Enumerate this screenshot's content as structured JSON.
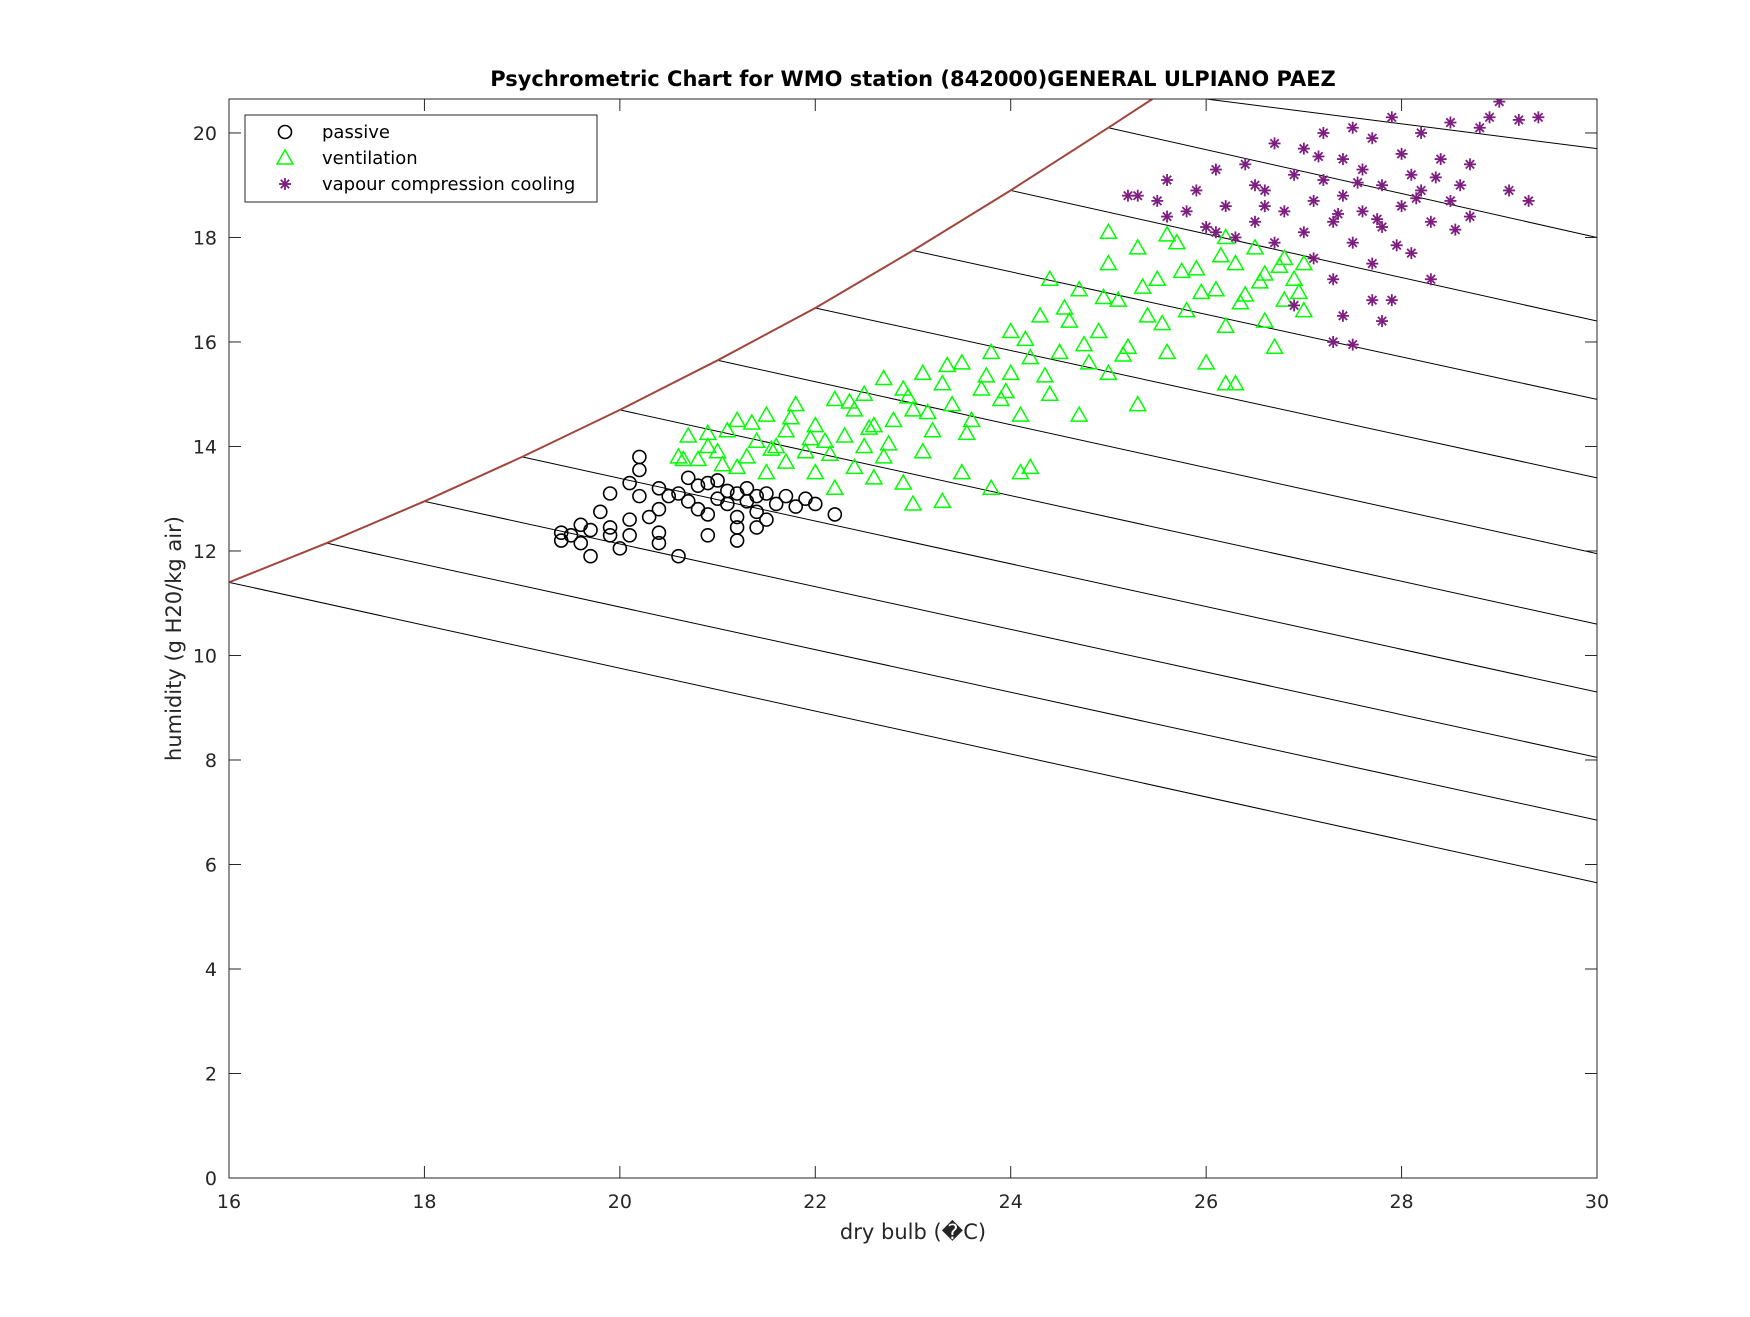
{
  "chart_data": {
    "type": "scatter",
    "title": "Psychrometric Chart for WMO station (842000)GENERAL ULPIANO PAEZ",
    "xlabel": "dry bulb (�C)",
    "ylabel": "humidity (g H20/kg air)",
    "xlim": [
      16,
      30
    ],
    "ylim": [
      0,
      20.65
    ],
    "xticks": [
      "16",
      "18",
      "20",
      "22",
      "24",
      "26",
      "28",
      "30"
    ],
    "yticks": [
      "0",
      "2",
      "4",
      "6",
      "8",
      "10",
      "12",
      "14",
      "16",
      "18",
      "20"
    ],
    "grid": false,
    "legend_position": "top-left",
    "legend": [
      {
        "label": "passive",
        "marker": "circle",
        "color": "#000000"
      },
      {
        "label": "ventilation",
        "marker": "triangle",
        "color": "#00ff00"
      },
      {
        "label": "vapour compression cooling",
        "marker": "asterisk",
        "color": "#7e1e80"
      }
    ],
    "saturation_curve": {
      "color": "#a0463c",
      "points": [
        [
          16,
          11.4
        ],
        [
          17,
          12.15
        ],
        [
          18,
          12.95
        ],
        [
          19,
          13.8
        ],
        [
          20,
          14.7
        ],
        [
          21,
          15.65
        ],
        [
          22,
          16.65
        ],
        [
          23,
          17.75
        ],
        [
          24,
          18.9
        ],
        [
          25,
          20.1
        ],
        [
          25.45,
          20.65
        ]
      ]
    },
    "constant_lines": {
      "color": "#000000",
      "lines": [
        [
          [
            16,
            11.4
          ],
          [
            30,
            5.65
          ]
        ],
        [
          [
            17,
            12.15
          ],
          [
            30,
            6.85
          ]
        ],
        [
          [
            18,
            12.95
          ],
          [
            30,
            8.05
          ]
        ],
        [
          [
            19,
            13.8
          ],
          [
            30,
            9.3
          ]
        ],
        [
          [
            20,
            14.7
          ],
          [
            30,
            10.6
          ]
        ],
        [
          [
            21,
            15.65
          ],
          [
            30,
            11.95
          ]
        ],
        [
          [
            22,
            16.65
          ],
          [
            30,
            13.4
          ]
        ],
        [
          [
            23,
            17.75
          ],
          [
            30,
            14.9
          ]
        ],
        [
          [
            24,
            18.9
          ],
          [
            30,
            16.4
          ]
        ],
        [
          [
            25,
            20.1
          ],
          [
            30,
            18.0
          ]
        ],
        [
          [
            26.0,
            20.65
          ],
          [
            30,
            19.7
          ]
        ]
      ]
    },
    "series": [
      {
        "name": "passive",
        "marker": "circle",
        "color": "#000000",
        "points": [
          [
            19.4,
            12.2
          ],
          [
            19.4,
            12.35
          ],
          [
            19.5,
            12.3
          ],
          [
            19.6,
            12.5
          ],
          [
            19.6,
            12.15
          ],
          [
            19.7,
            12.4
          ],
          [
            19.7,
            11.9
          ],
          [
            19.8,
            12.75
          ],
          [
            19.9,
            13.1
          ],
          [
            19.9,
            12.45
          ],
          [
            19.9,
            12.3
          ],
          [
            20.0,
            12.05
          ],
          [
            20.1,
            12.6
          ],
          [
            20.1,
            12.3
          ],
          [
            20.1,
            13.3
          ],
          [
            20.2,
            13.8
          ],
          [
            20.2,
            13.55
          ],
          [
            20.2,
            13.05
          ],
          [
            20.3,
            12.65
          ],
          [
            20.4,
            13.2
          ],
          [
            20.4,
            12.8
          ],
          [
            20.4,
            12.35
          ],
          [
            20.4,
            12.15
          ],
          [
            20.5,
            13.05
          ],
          [
            20.6,
            11.9
          ],
          [
            20.6,
            13.1
          ],
          [
            20.7,
            13.4
          ],
          [
            20.7,
            12.95
          ],
          [
            20.8,
            13.25
          ],
          [
            20.8,
            12.8
          ],
          [
            20.9,
            13.3
          ],
          [
            20.9,
            12.7
          ],
          [
            20.9,
            12.3
          ],
          [
            21.0,
            13.0
          ],
          [
            21.0,
            13.35
          ],
          [
            21.1,
            12.9
          ],
          [
            21.1,
            13.15
          ],
          [
            21.2,
            12.45
          ],
          [
            21.2,
            12.2
          ],
          [
            21.2,
            13.1
          ],
          [
            21.2,
            12.65
          ],
          [
            21.3,
            12.95
          ],
          [
            21.3,
            13.2
          ],
          [
            21.4,
            13.05
          ],
          [
            21.4,
            12.75
          ],
          [
            21.4,
            12.45
          ],
          [
            21.5,
            13.1
          ],
          [
            21.5,
            12.6
          ],
          [
            21.6,
            12.9
          ],
          [
            21.7,
            13.05
          ],
          [
            21.8,
            12.85
          ],
          [
            21.9,
            13.0
          ],
          [
            22.0,
            12.9
          ],
          [
            22.2,
            12.7
          ]
        ]
      },
      {
        "name": "ventilation",
        "marker": "triangle",
        "color": "#00ff00",
        "points": [
          [
            20.6,
            13.8
          ],
          [
            20.7,
            14.2
          ],
          [
            20.8,
            13.75
          ],
          [
            20.9,
            14.0
          ],
          [
            21.0,
            13.9
          ],
          [
            21.1,
            14.3
          ],
          [
            21.2,
            13.6
          ],
          [
            21.2,
            14.5
          ],
          [
            21.3,
            13.8
          ],
          [
            21.4,
            14.1
          ],
          [
            21.5,
            14.6
          ],
          [
            21.5,
            13.5
          ],
          [
            21.6,
            14.0
          ],
          [
            21.7,
            14.3
          ],
          [
            21.7,
            13.7
          ],
          [
            21.8,
            14.8
          ],
          [
            21.9,
            13.9
          ],
          [
            22.0,
            14.4
          ],
          [
            22.0,
            13.5
          ],
          [
            22.1,
            14.1
          ],
          [
            22.2,
            14.9
          ],
          [
            22.2,
            13.2
          ],
          [
            22.3,
            14.2
          ],
          [
            22.4,
            13.6
          ],
          [
            22.4,
            14.7
          ],
          [
            22.5,
            14.0
          ],
          [
            22.5,
            15.0
          ],
          [
            22.6,
            13.4
          ],
          [
            22.6,
            14.4
          ],
          [
            22.7,
            15.3
          ],
          [
            22.7,
            13.8
          ],
          [
            22.8,
            14.5
          ],
          [
            22.9,
            15.1
          ],
          [
            22.9,
            13.3
          ],
          [
            23.0,
            14.7
          ],
          [
            23.1,
            15.4
          ],
          [
            23.1,
            13.9
          ],
          [
            23.2,
            14.3
          ],
          [
            23.3,
            15.2
          ],
          [
            23.3,
            12.95
          ],
          [
            23.4,
            14.8
          ],
          [
            23.5,
            15.6
          ],
          [
            23.5,
            13.5
          ],
          [
            23.6,
            14.5
          ],
          [
            23.7,
            15.1
          ],
          [
            23.8,
            13.2
          ],
          [
            23.8,
            15.8
          ],
          [
            23.9,
            14.9
          ],
          [
            24.0,
            15.4
          ],
          [
            24.0,
            16.2
          ],
          [
            24.1,
            14.6
          ],
          [
            24.2,
            15.7
          ],
          [
            24.2,
            13.6
          ],
          [
            24.3,
            16.5
          ],
          [
            24.4,
            15.0
          ],
          [
            24.4,
            17.2
          ],
          [
            24.5,
            15.8
          ],
          [
            24.6,
            16.4
          ],
          [
            24.7,
            14.6
          ],
          [
            24.7,
            17.0
          ],
          [
            24.8,
            15.6
          ],
          [
            24.9,
            16.2
          ],
          [
            25.0,
            17.5
          ],
          [
            25.0,
            15.4
          ],
          [
            25.1,
            16.8
          ],
          [
            25.2,
            15.9
          ],
          [
            25.3,
            17.8
          ],
          [
            25.3,
            14.8
          ],
          [
            25.4,
            16.5
          ],
          [
            25.5,
            17.2
          ],
          [
            25.6,
            15.8
          ],
          [
            25.7,
            17.9
          ],
          [
            25.8,
            16.6
          ],
          [
            25.9,
            17.4
          ],
          [
            26.0,
            15.6
          ],
          [
            26.1,
            17.0
          ],
          [
            26.2,
            18.0
          ],
          [
            26.2,
            16.3
          ],
          [
            26.3,
            17.5
          ],
          [
            26.3,
            15.2
          ],
          [
            26.4,
            16.9
          ],
          [
            26.5,
            17.8
          ],
          [
            26.6,
            16.4
          ],
          [
            26.6,
            17.3
          ],
          [
            26.7,
            15.9
          ],
          [
            26.8,
            17.6
          ],
          [
            26.8,
            16.8
          ],
          [
            26.9,
            17.2
          ],
          [
            27.0,
            16.6
          ],
          [
            27.0,
            17.5
          ],
          [
            20.65,
            13.75
          ],
          [
            20.9,
            14.25
          ],
          [
            21.05,
            13.65
          ],
          [
            21.35,
            14.45
          ],
          [
            21.55,
            13.95
          ],
          [
            21.75,
            14.55
          ],
          [
            21.95,
            14.15
          ],
          [
            22.15,
            13.85
          ],
          [
            22.35,
            14.85
          ],
          [
            22.55,
            14.35
          ],
          [
            22.75,
            14.05
          ],
          [
            22.95,
            14.95
          ],
          [
            23.15,
            14.65
          ],
          [
            23.35,
            15.55
          ],
          [
            23.55,
            14.25
          ],
          [
            23.75,
            15.35
          ],
          [
            23.95,
            15.05
          ],
          [
            24.15,
            16.05
          ],
          [
            24.35,
            15.35
          ],
          [
            24.55,
            16.65
          ],
          [
            24.75,
            15.95
          ],
          [
            24.95,
            16.85
          ],
          [
            25.15,
            15.75
          ],
          [
            25.35,
            17.05
          ],
          [
            25.55,
            16.35
          ],
          [
            25.75,
            17.35
          ],
          [
            25.95,
            16.95
          ],
          [
            26.15,
            17.65
          ],
          [
            26.35,
            16.75
          ],
          [
            26.55,
            17.15
          ],
          [
            26.75,
            17.45
          ],
          [
            26.95,
            16.95
          ],
          [
            26.2,
            15.2
          ],
          [
            25.6,
            18.05
          ],
          [
            25.0,
            18.1
          ],
          [
            23.0,
            12.9
          ],
          [
            24.1,
            13.5
          ]
        ]
      },
      {
        "name": "vapour compression cooling",
        "marker": "asterisk",
        "color": "#7e1e80",
        "points": [
          [
            25.3,
            18.8
          ],
          [
            25.5,
            18.7
          ],
          [
            25.6,
            19.1
          ],
          [
            25.8,
            18.5
          ],
          [
            25.9,
            18.9
          ],
          [
            26.0,
            18.2
          ],
          [
            26.1,
            19.3
          ],
          [
            26.2,
            18.6
          ],
          [
            26.3,
            18.0
          ],
          [
            26.4,
            19.4
          ],
          [
            26.5,
            18.3
          ],
          [
            26.6,
            18.9
          ],
          [
            26.7,
            19.8
          ],
          [
            26.7,
            17.9
          ],
          [
            26.8,
            18.5
          ],
          [
            26.9,
            19.2
          ],
          [
            27.0,
            18.1
          ],
          [
            27.0,
            19.7
          ],
          [
            27.1,
            18.7
          ],
          [
            27.1,
            17.6
          ],
          [
            27.2,
            19.1
          ],
          [
            27.2,
            20.0
          ],
          [
            27.3,
            18.3
          ],
          [
            27.3,
            17.2
          ],
          [
            27.4,
            19.5
          ],
          [
            27.4,
            18.8
          ],
          [
            27.5,
            17.9
          ],
          [
            27.5,
            20.1
          ],
          [
            27.6,
            18.5
          ],
          [
            27.6,
            19.3
          ],
          [
            27.7,
            17.5
          ],
          [
            27.7,
            19.9
          ],
          [
            27.8,
            18.2
          ],
          [
            27.8,
            19.0
          ],
          [
            27.9,
            16.8
          ],
          [
            27.9,
            20.3
          ],
          [
            28.0,
            18.6
          ],
          [
            28.0,
            19.6
          ],
          [
            28.1,
            17.7
          ],
          [
            28.1,
            19.2
          ],
          [
            28.2,
            18.9
          ],
          [
            28.2,
            20.0
          ],
          [
            28.3,
            18.3
          ],
          [
            28.3,
            17.2
          ],
          [
            28.4,
            19.5
          ],
          [
            28.5,
            18.7
          ],
          [
            28.5,
            20.2
          ],
          [
            28.6,
            19.0
          ],
          [
            28.7,
            18.4
          ],
          [
            28.7,
            19.4
          ],
          [
            28.8,
            20.1
          ],
          [
            29.0,
            20.6
          ],
          [
            28.9,
            20.3
          ],
          [
            29.2,
            20.25
          ],
          [
            29.4,
            20.3
          ],
          [
            29.1,
            18.9
          ],
          [
            29.3,
            18.7
          ],
          [
            27.3,
            16.0
          ],
          [
            27.5,
            15.95
          ],
          [
            27.4,
            16.5
          ],
          [
            27.8,
            16.4
          ],
          [
            27.7,
            16.8
          ],
          [
            26.9,
            16.7
          ],
          [
            26.6,
            18.6
          ],
          [
            25.6,
            18.4
          ],
          [
            25.2,
            18.8
          ],
          [
            26.1,
            18.1
          ],
          [
            26.5,
            19.0
          ],
          [
            27.15,
            19.55
          ],
          [
            27.35,
            18.45
          ],
          [
            27.55,
            19.05
          ],
          [
            27.75,
            18.35
          ],
          [
            27.95,
            17.85
          ],
          [
            28.15,
            18.75
          ],
          [
            28.35,
            19.15
          ],
          [
            28.55,
            18.15
          ]
        ]
      }
    ]
  }
}
